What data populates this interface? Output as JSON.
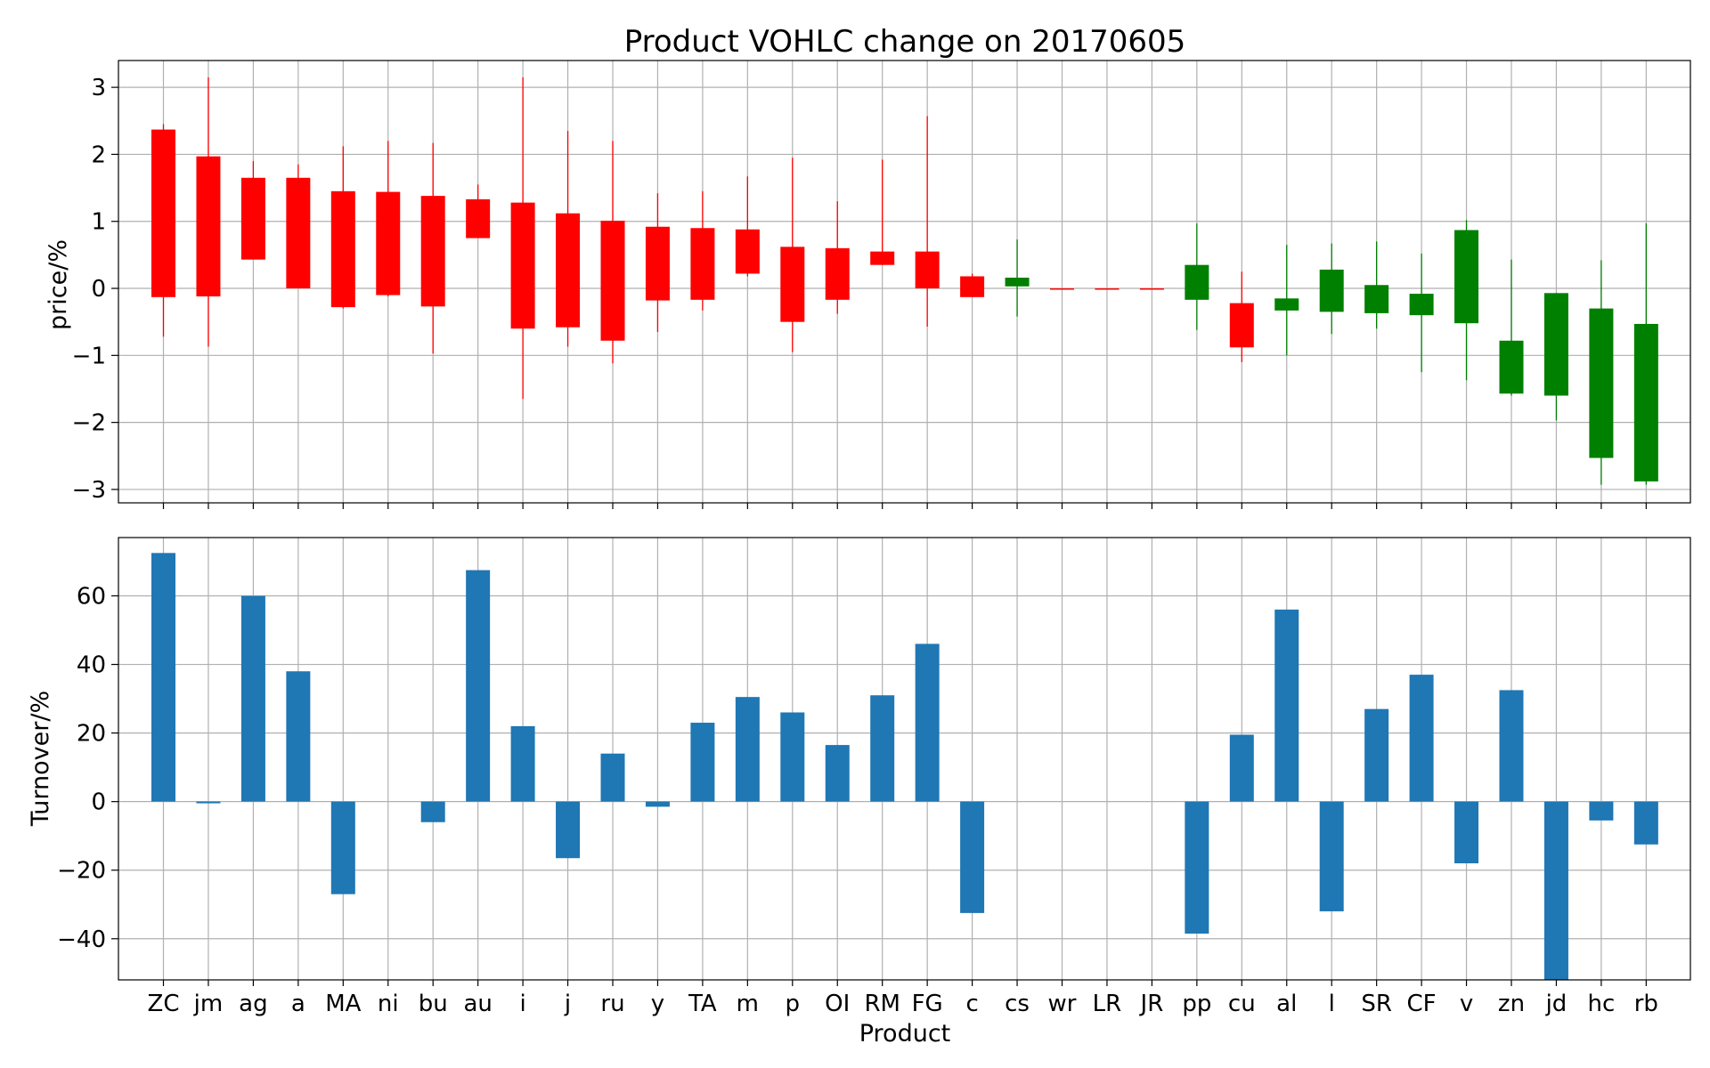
{
  "title": "Product VOHLC change on 20170605",
  "xlabel": "Product",
  "chart_data": [
    {
      "type": "candlestick",
      "ylabel": "price/%",
      "ylim": [
        -3.2,
        3.4
      ],
      "yticks": [
        -3,
        -2,
        -1,
        0,
        1,
        2,
        3
      ],
      "ytick_labels": [
        "−3",
        "−2",
        "−1",
        "0",
        "1",
        "2",
        "3"
      ],
      "grid": true,
      "up_color": "#ff0000",
      "down_color": "#008000",
      "categories": [
        "ZC",
        "jm",
        "ag",
        "a",
        "MA",
        "ni",
        "bu",
        "au",
        "i",
        "j",
        "ru",
        "y",
        "TA",
        "m",
        "p",
        "OI",
        "RM",
        "FG",
        "c",
        "cs",
        "wr",
        "LR",
        "JR",
        "pp",
        "cu",
        "al",
        "l",
        "SR",
        "CF",
        "v",
        "zn",
        "jd",
        "hc",
        "rb"
      ],
      "candles": [
        {
          "open": -0.13,
          "close": 2.37,
          "high": 2.45,
          "low": -0.72
        },
        {
          "open": -0.12,
          "close": 1.97,
          "high": 3.15,
          "low": -0.87
        },
        {
          "open": 0.43,
          "close": 1.65,
          "high": 1.9,
          "low": 0.43
        },
        {
          "open": 0.0,
          "close": 1.65,
          "high": 1.85,
          "low": 0.0
        },
        {
          "open": -0.28,
          "close": 1.45,
          "high": 2.12,
          "low": -0.3
        },
        {
          "open": -0.1,
          "close": 1.44,
          "high": 2.2,
          "low": -0.12
        },
        {
          "open": -0.27,
          "close": 1.38,
          "high": 2.17,
          "low": -0.97
        },
        {
          "open": 0.75,
          "close": 1.33,
          "high": 1.55,
          "low": 0.75
        },
        {
          "open": -0.6,
          "close": 1.28,
          "high": 3.15,
          "low": -1.65
        },
        {
          "open": -0.58,
          "close": 1.12,
          "high": 2.35,
          "low": -0.87
        },
        {
          "open": -0.78,
          "close": 1.01,
          "high": 2.2,
          "low": -1.12
        },
        {
          "open": -0.18,
          "close": 0.92,
          "high": 1.42,
          "low": -0.65
        },
        {
          "open": -0.17,
          "close": 0.9,
          "high": 1.45,
          "low": -0.33
        },
        {
          "open": 0.22,
          "close": 0.88,
          "high": 1.67,
          "low": 0.18
        },
        {
          "open": -0.5,
          "close": 0.62,
          "high": 1.95,
          "low": -0.95
        },
        {
          "open": -0.17,
          "close": 0.6,
          "high": 1.3,
          "low": -0.38
        },
        {
          "open": 0.35,
          "close": 0.55,
          "high": 1.92,
          "low": 0.35
        },
        {
          "open": 0.0,
          "close": 0.55,
          "high": 2.57,
          "low": -0.57
        },
        {
          "open": -0.13,
          "close": 0.18,
          "high": 0.22,
          "low": -0.13
        },
        {
          "open": 0.16,
          "close": 0.03,
          "high": 0.73,
          "low": -0.42
        },
        {
          "open": 0.0,
          "close": 0.0,
          "high": 0.0,
          "low": 0.0
        },
        {
          "open": 0.0,
          "close": 0.0,
          "high": 0.0,
          "low": 0.0
        },
        {
          "open": 0.0,
          "close": 0.0,
          "high": 0.0,
          "low": 0.0
        },
        {
          "open": 0.35,
          "close": -0.17,
          "high": 0.97,
          "low": -0.62
        },
        {
          "open": -0.88,
          "close": -0.22,
          "high": 0.25,
          "low": -1.1
        },
        {
          "open": -0.15,
          "close": -0.33,
          "high": 0.65,
          "low": -1.0
        },
        {
          "open": 0.28,
          "close": -0.35,
          "high": 0.67,
          "low": -0.68
        },
        {
          "open": 0.05,
          "close": -0.37,
          "high": 0.7,
          "low": -0.6
        },
        {
          "open": -0.08,
          "close": -0.4,
          "high": 0.52,
          "low": -1.25
        },
        {
          "open": 0.87,
          "close": -0.52,
          "high": 1.02,
          "low": -1.37
        },
        {
          "open": -0.78,
          "close": -1.57,
          "high": 0.43,
          "low": -1.6
        },
        {
          "open": -0.07,
          "close": -1.6,
          "high": -0.07,
          "low": -1.97
        },
        {
          "open": -0.3,
          "close": -2.53,
          "high": 0.42,
          "low": -2.93
        },
        {
          "open": -0.53,
          "close": -2.88,
          "high": 0.97,
          "low": -2.93
        }
      ]
    },
    {
      "type": "bar",
      "ylabel": "Turnover/%",
      "ylim": [
        -52,
        77
      ],
      "yticks": [
        -40,
        -20,
        0,
        20,
        40,
        60
      ],
      "ytick_labels": [
        "−40",
        "−20",
        "0",
        "20",
        "40",
        "60"
      ],
      "grid": true,
      "bar_color": "#1f77b4",
      "categories": [
        "ZC",
        "jm",
        "ag",
        "a",
        "MA",
        "ni",
        "bu",
        "au",
        "i",
        "j",
        "ru",
        "y",
        "TA",
        "m",
        "p",
        "OI",
        "RM",
        "FG",
        "c",
        "cs",
        "wr",
        "LR",
        "JR",
        "pp",
        "cu",
        "al",
        "l",
        "SR",
        "CF",
        "v",
        "zn",
        "jd",
        "hc",
        "rb"
      ],
      "values": [
        72.5,
        -0.5,
        60,
        38,
        -27,
        0,
        -6,
        67.5,
        22,
        -16.5,
        14,
        -1.5,
        23,
        30.5,
        26,
        16.5,
        31,
        46,
        -32.5,
        0,
        0,
        0,
        0,
        -38.5,
        19.5,
        56,
        -32,
        27,
        37,
        -18,
        32.5,
        -52,
        -5.5,
        -12.5
      ]
    }
  ]
}
